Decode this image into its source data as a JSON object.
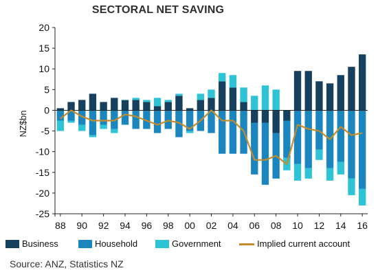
{
  "chart_data": {
    "type": "bar",
    "title": "SECTORAL NET SAVING",
    "ylabel": "NZ$bn",
    "xlabel": "",
    "ylim": [
      -25,
      20
    ],
    "yticks": [
      20,
      15,
      10,
      5,
      0,
      -5,
      -10,
      -15,
      -20,
      -25
    ],
    "x": [
      1988,
      1989,
      1990,
      1991,
      1992,
      1993,
      1994,
      1995,
      1996,
      1997,
      1998,
      1999,
      2000,
      2001,
      2002,
      2003,
      2004,
      2005,
      2006,
      2007,
      2008,
      2009,
      2010,
      2011,
      2012,
      2013,
      2014,
      2015,
      2016
    ],
    "xticklabels": [
      "88",
      "90",
      "92",
      "94",
      "96",
      "98",
      "00",
      "02",
      "04",
      "06",
      "08",
      "10",
      "12",
      "14",
      "16"
    ],
    "stacked": true,
    "series": [
      {
        "name": "Business",
        "kind": "bar",
        "color": "#17405e",
        "values": [
          0.5,
          2,
          2.5,
          4,
          2,
          3,
          2.5,
          2.5,
          2,
          1,
          2,
          3.5,
          0.5,
          2.5,
          3,
          7,
          5.5,
          2,
          -3,
          -3,
          -5.5,
          -2.5,
          9.5,
          9.5,
          7,
          6.5,
          8.5,
          10.5,
          13.5
        ]
      },
      {
        "name": "Household",
        "kind": "bar",
        "color": "#1b86bd",
        "values": [
          -2.5,
          -2.5,
          -3.5,
          -6,
          -3.5,
          -4.5,
          -3.5,
          -4.5,
          -4.5,
          -5.5,
          -4.5,
          -6.5,
          -5,
          -5,
          -5.5,
          -10.5,
          -10.5,
          -10.5,
          -12.5,
          -15,
          -11,
          -9,
          -13,
          -14,
          -9.5,
          -14,
          -12.5,
          -16.5,
          -19
        ]
      },
      {
        "name": "Government",
        "kind": "bar",
        "color": "#2ec4d6",
        "values": [
          -2.5,
          -0.5,
          -1.5,
          -0.5,
          -1,
          -1,
          0,
          0.5,
          0.5,
          2,
          0.5,
          0.5,
          -0.5,
          1.5,
          2,
          2,
          3,
          3.5,
          3.5,
          6,
          5,
          -3,
          -4,
          -2.5,
          -2.5,
          -3,
          -3,
          -4,
          -4
        ]
      },
      {
        "name": "Implied current account",
        "kind": "line",
        "color": "#c58a2a",
        "values": [
          -2,
          0,
          -1.5,
          -2.5,
          -2.5,
          -2.5,
          -1,
          -1.5,
          -2.5,
          -3.5,
          -2.5,
          -3,
          -4.5,
          -2.5,
          0,
          -2.5,
          -2.5,
          -5,
          -12,
          -12,
          -11,
          -13,
          -3.5,
          -4.5,
          -5,
          -7,
          -4,
          -6,
          -5.5
        ]
      }
    ],
    "legend": [
      "Business",
      "Household",
      "Government",
      "Implied current account"
    ],
    "legend_position": "bottom",
    "grid": false,
    "source": "Source: ANZ, Statistics NZ"
  }
}
